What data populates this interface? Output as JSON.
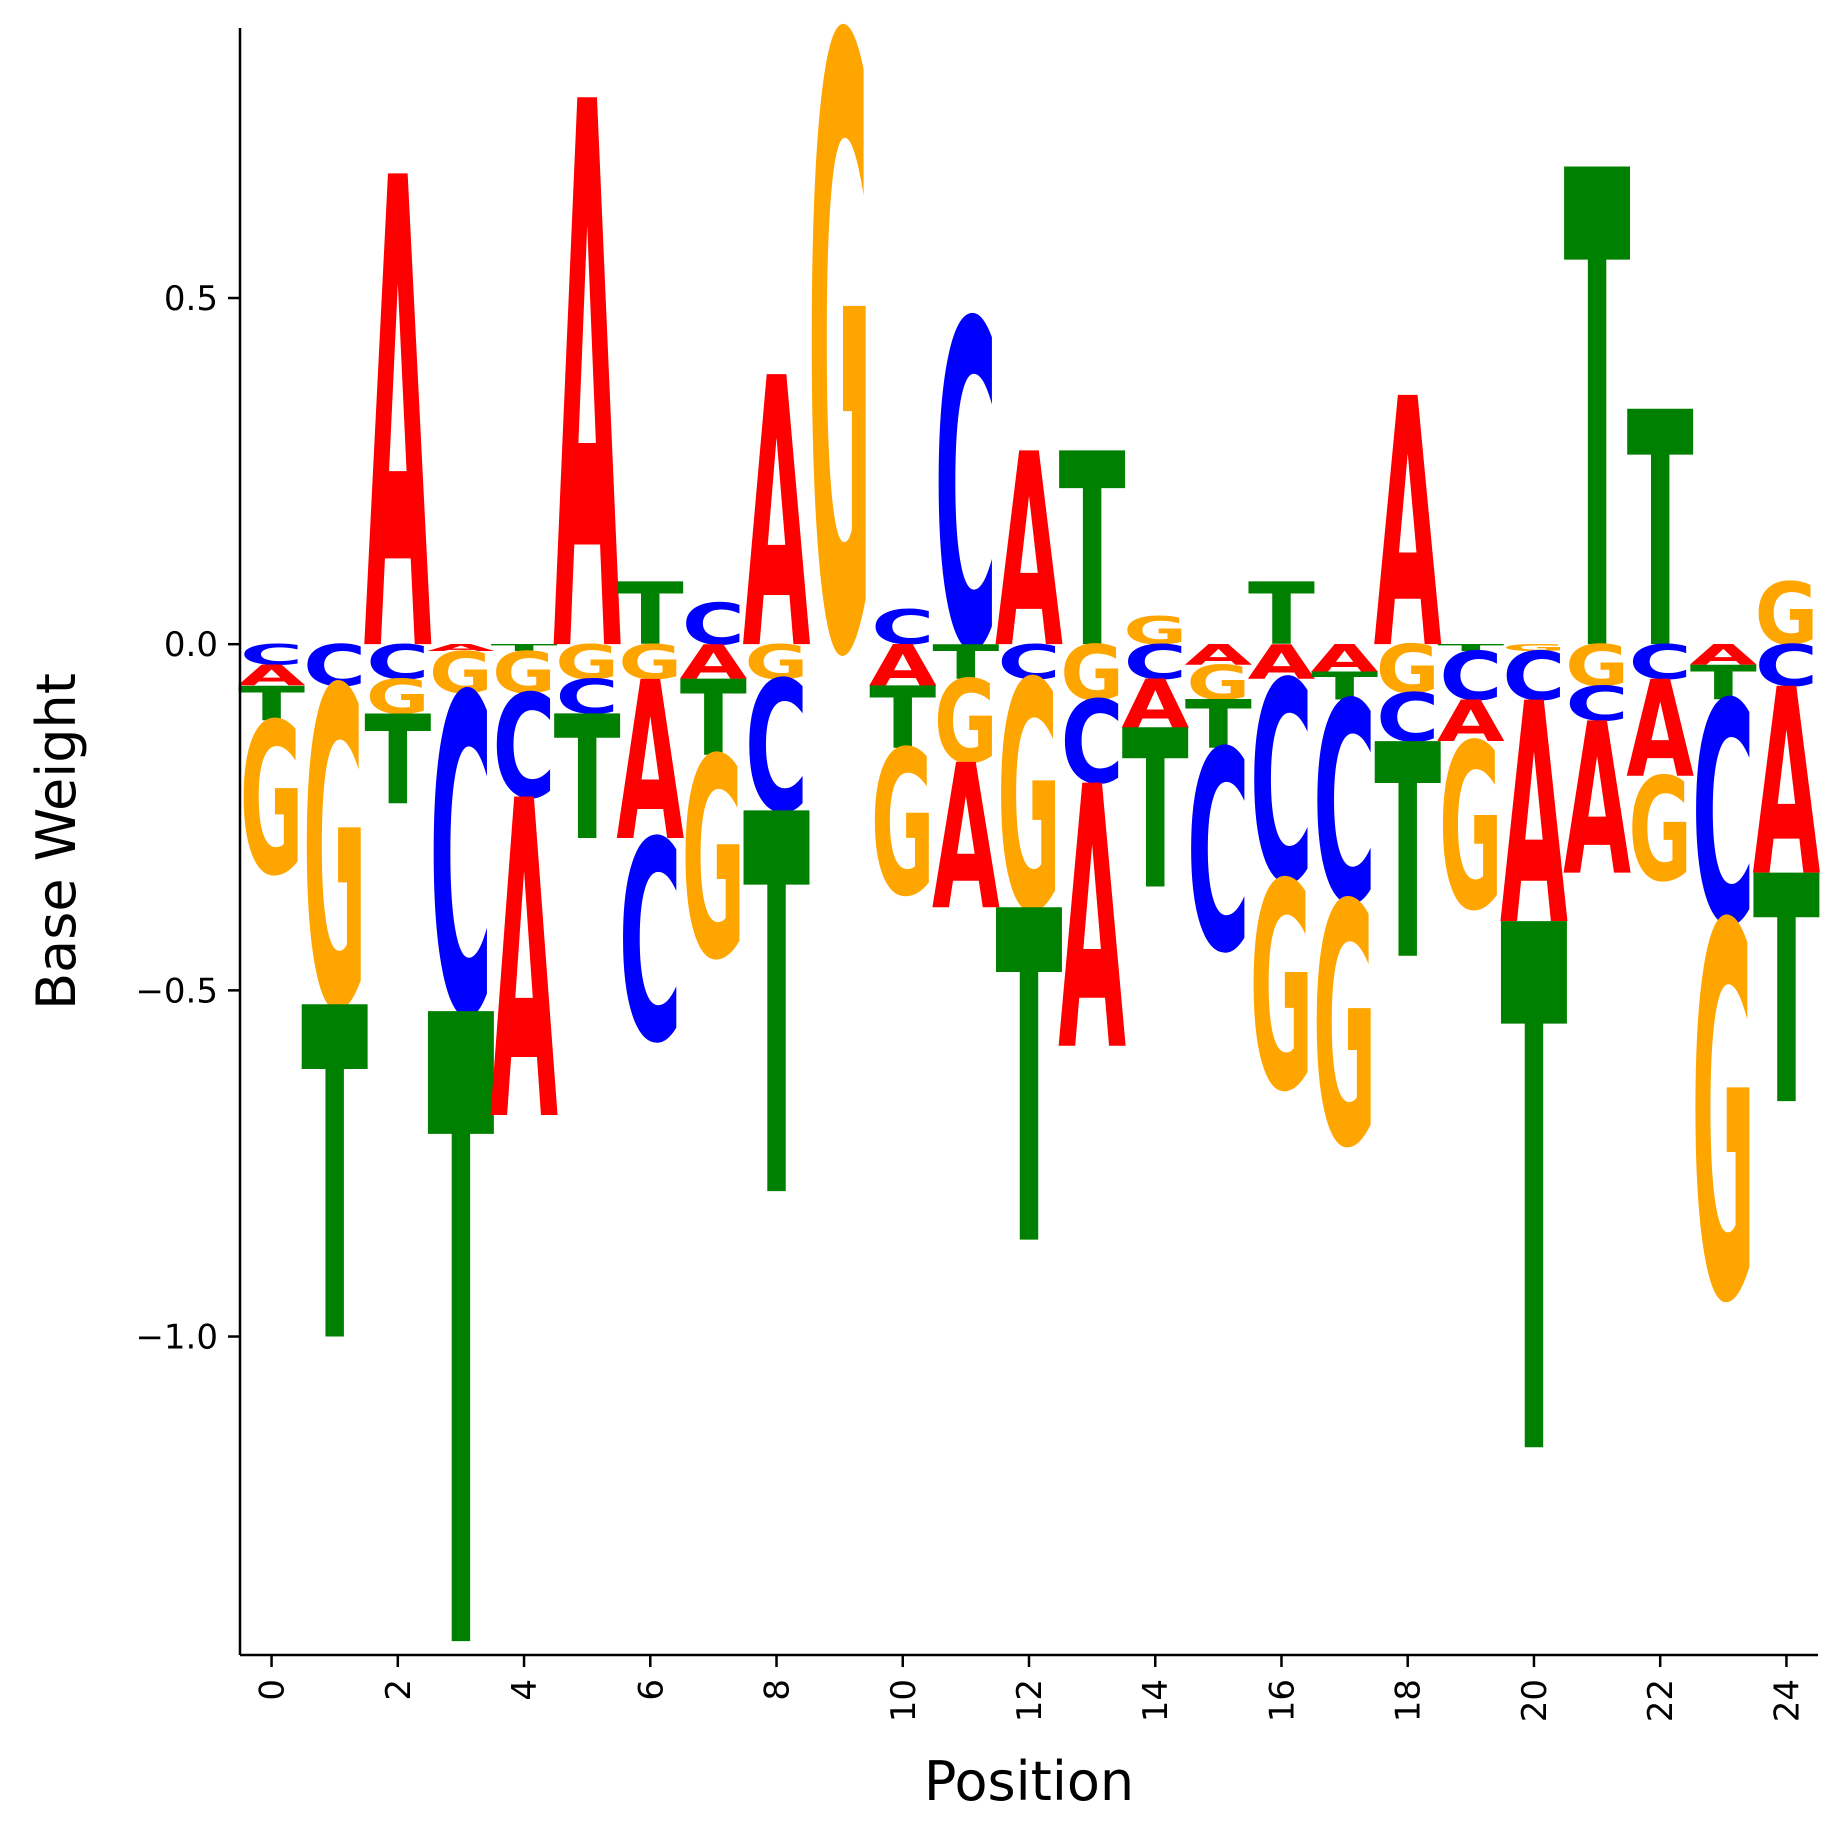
{
  "chart_data": {
    "type": "sequence_logo",
    "xlabel": "Position",
    "ylabel": "Base Weight",
    "xlim": [
      -0.5,
      24.5
    ],
    "ylim": [
      -1.46,
      0.89
    ],
    "x_ticks": [
      0,
      2,
      4,
      6,
      8,
      10,
      12,
      14,
      16,
      18,
      20,
      22,
      24
    ],
    "y_ticks": [
      {
        "value": 0.5,
        "label": "0.5"
      },
      {
        "value": 0.0,
        "label": "0.0"
      },
      {
        "value": -0.5,
        "label": "−0.5"
      },
      {
        "value": -1.0,
        "label": "−1.0"
      }
    ],
    "grid": false,
    "colors": {
      "A": "#ff0000",
      "C": "#0000ff",
      "G": "#ffa500",
      "T": "#008000"
    },
    "positions": [
      {
        "pos": 0,
        "pos_letters": [],
        "neg_letters": [
          [
            "C",
            0.03
          ],
          [
            "A",
            0.03
          ],
          [
            "T",
            0.05
          ],
          [
            "G",
            0.22
          ]
        ]
      },
      {
        "pos": 1,
        "pos_letters": [],
        "neg_letters": [
          [
            "C",
            0.06
          ],
          [
            "G",
            0.46
          ],
          [
            "T",
            0.48
          ]
        ]
      },
      {
        "pos": 2,
        "pos_letters": [
          [
            "A",
            0.68
          ]
        ],
        "neg_letters": [
          [
            "C",
            0.05
          ],
          [
            "G",
            0.05
          ],
          [
            "T",
            0.13
          ]
        ]
      },
      {
        "pos": 3,
        "pos_letters": [],
        "neg_letters": [
          [
            "A",
            0.01
          ],
          [
            "G",
            0.06
          ],
          [
            "C",
            0.46
          ],
          [
            "T",
            0.91
          ]
        ]
      },
      {
        "pos": 4,
        "pos_letters": [],
        "neg_letters": [
          [
            "T",
            0.01
          ],
          [
            "G",
            0.06
          ],
          [
            "C",
            0.15
          ],
          [
            "A",
            0.46
          ]
        ]
      },
      {
        "pos": 5,
        "pos_letters": [
          [
            "A",
            0.79
          ]
        ],
        "neg_letters": [
          [
            "G",
            0.05
          ],
          [
            "C",
            0.05
          ],
          [
            "T",
            0.18
          ]
        ]
      },
      {
        "pos": 6,
        "pos_letters": [
          [
            "T",
            0.09
          ]
        ],
        "neg_letters": [
          [
            "G",
            0.05
          ],
          [
            "A",
            0.23
          ],
          [
            "C",
            0.29
          ]
        ]
      },
      {
        "pos": 7,
        "pos_letters": [
          [
            "C",
            0.06
          ]
        ],
        "neg_letters": [
          [
            "A",
            0.05
          ],
          [
            "T",
            0.11
          ],
          [
            "G",
            0.29
          ]
        ]
      },
      {
        "pos": 8,
        "pos_letters": [
          [
            "A",
            0.39
          ]
        ],
        "neg_letters": [
          [
            "G",
            0.05
          ],
          [
            "C",
            0.19
          ],
          [
            "T",
            0.55
          ]
        ]
      },
      {
        "pos": 9,
        "pos_letters": [
          [
            "G",
            0.88
          ]
        ],
        "neg_letters": []
      },
      {
        "pos": 10,
        "pos_letters": [
          [
            "C",
            0.05
          ]
        ],
        "neg_letters": [
          [
            "A",
            0.06
          ],
          [
            "T",
            0.09
          ],
          [
            "G",
            0.21
          ]
        ]
      },
      {
        "pos": 11,
        "pos_letters": [
          [
            "C",
            0.47
          ]
        ],
        "neg_letters": [
          [
            "T",
            0.05
          ],
          [
            "G",
            0.12
          ],
          [
            "A",
            0.21
          ]
        ]
      },
      {
        "pos": 12,
        "pos_letters": [
          [
            "A",
            0.28
          ]
        ],
        "neg_letters": [
          [
            "C",
            0.05
          ],
          [
            "G",
            0.33
          ],
          [
            "T",
            0.48
          ]
        ]
      },
      {
        "pos": 13,
        "pos_letters": [
          [
            "T",
            0.28
          ]
        ],
        "neg_letters": [
          [
            "G",
            0.08
          ],
          [
            "C",
            0.12
          ],
          [
            "A",
            0.38
          ]
        ]
      },
      {
        "pos": 14,
        "pos_letters": [
          [
            "G",
            0.04
          ]
        ],
        "neg_letters": [
          [
            "C",
            0.05
          ],
          [
            "A",
            0.07
          ],
          [
            "T",
            0.23
          ]
        ]
      },
      {
        "pos": 15,
        "pos_letters": [],
        "neg_letters": [
          [
            "A",
            0.03
          ],
          [
            "G",
            0.05
          ],
          [
            "T",
            0.07
          ],
          [
            "C",
            0.29
          ]
        ]
      },
      {
        "pos": 16,
        "pos_letters": [
          [
            "T",
            0.09
          ]
        ],
        "neg_letters": [
          [
            "A",
            0.05
          ],
          [
            "C",
            0.29
          ],
          [
            "G",
            0.3
          ]
        ]
      },
      {
        "pos": 17,
        "pos_letters": [],
        "neg_letters": [
          [
            "A",
            0.04
          ],
          [
            "T",
            0.04
          ],
          [
            "C",
            0.29
          ],
          [
            "G",
            0.35
          ]
        ]
      },
      {
        "pos": 18,
        "pos_letters": [
          [
            "A",
            0.36
          ]
        ],
        "neg_letters": [
          [
            "G",
            0.07
          ],
          [
            "C",
            0.07
          ],
          [
            "T",
            0.31
          ]
        ]
      },
      {
        "pos": 19,
        "pos_letters": [],
        "neg_letters": [
          [
            "T",
            0.01
          ],
          [
            "C",
            0.07
          ],
          [
            "A",
            0.06
          ],
          [
            "G",
            0.24
          ]
        ]
      },
      {
        "pos": 20,
        "pos_letters": [],
        "neg_letters": [
          [
            "G",
            0.01
          ],
          [
            "C",
            0.07
          ],
          [
            "A",
            0.32
          ],
          [
            "T",
            0.76
          ]
        ]
      },
      {
        "pos": 21,
        "pos_letters": [
          [
            "T",
            0.69
          ]
        ],
        "neg_letters": [
          [
            "G",
            0.06
          ],
          [
            "C",
            0.05
          ],
          [
            "A",
            0.22
          ]
        ]
      },
      {
        "pos": 22,
        "pos_letters": [
          [
            "T",
            0.34
          ]
        ],
        "neg_letters": [
          [
            "C",
            0.05
          ],
          [
            "A",
            0.14
          ],
          [
            "G",
            0.15
          ]
        ]
      },
      {
        "pos": 23,
        "pos_letters": [],
        "neg_letters": [
          [
            "A",
            0.03
          ],
          [
            "T",
            0.05
          ],
          [
            "C",
            0.32
          ],
          [
            "G",
            0.54
          ]
        ]
      },
      {
        "pos": 24,
        "pos_letters": [
          [
            "G",
            0.09
          ]
        ],
        "neg_letters": [
          [
            "C",
            0.06
          ],
          [
            "A",
            0.27
          ],
          [
            "T",
            0.33
          ]
        ]
      }
    ]
  }
}
